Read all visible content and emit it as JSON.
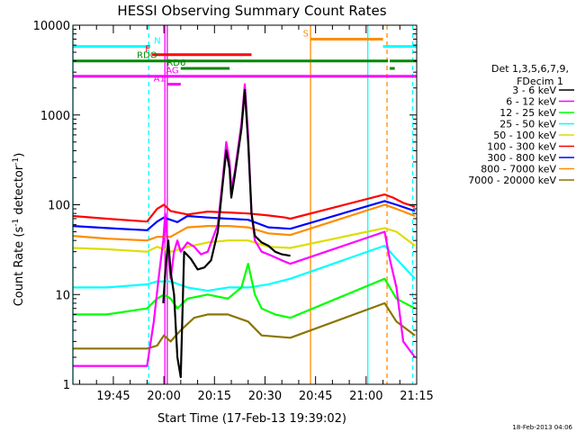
{
  "chart_data": {
    "type": "line",
    "title": "HESSI Observing Summary Count Rates",
    "xlabel": "Start Time (17-Feb-13 19:39:02)",
    "ylabel_main": "Count Rate (s",
    "ylabel_sup1": "-1",
    "ylabel_mid": " detector",
    "ylabel_sup2": "-1",
    "ylabel_end": ")",
    "timestamp": "18-Feb-2013 04:06",
    "y_scale": "log",
    "ylim": [
      1,
      10000
    ],
    "xlim_minutes": [
      -6.0,
      96.0
    ],
    "x_ticks": [
      {
        "m": 6,
        "label": "19:45"
      },
      {
        "m": 21,
        "label": "20:00"
      },
      {
        "m": 36,
        "label": "20:15"
      },
      {
        "m": 51,
        "label": "20:30"
      },
      {
        "m": 66,
        "label": "20:45"
      },
      {
        "m": 81,
        "label": "21:00"
      },
      {
        "m": 96,
        "label": "21:15"
      }
    ],
    "y_ticks": [
      {
        "v": 1,
        "label": "1"
      },
      {
        "v": 10,
        "label": "10"
      },
      {
        "v": 100,
        "label": "100"
      },
      {
        "v": 1000,
        "label": "1000"
      },
      {
        "v": 10000,
        "label": "10000"
      }
    ],
    "legend": {
      "header1": "Det 1,3,5,6,7,9,",
      "header2": "FDecim 1",
      "entries": [
        {
          "label": "3 - 6 keV",
          "color": "#000000"
        },
        {
          "label": "6 - 12 keV",
          "color": "#ff00ff"
        },
        {
          "label": "12 - 25 keV",
          "color": "#00ff00"
        },
        {
          "label": "25 - 50 keV",
          "color": "#00ffff"
        },
        {
          "label": "50 - 100 keV",
          "color": "#dddd00"
        },
        {
          "label": "100 - 300 keV",
          "color": "#ff0000"
        },
        {
          "label": "300 - 800 keV",
          "color": "#0000ff"
        },
        {
          "label": "800 - 7000 keV",
          "color": "#ff8c00"
        },
        {
          "label": "7000 - 20000 keV",
          "color": "#8b7500"
        }
      ]
    },
    "flag_bars": [
      {
        "label": "N",
        "color": "#00ffff",
        "value": 5800,
        "segments": [
          [
            -6,
            17
          ],
          [
            86,
            96
          ]
        ]
      },
      {
        "label": "S",
        "color": "#ff8c00",
        "value": 7000,
        "segments": [
          [
            64.5,
            86
          ]
        ]
      },
      {
        "label": "F",
        "color": "#ff0000",
        "value": 4700,
        "segments": [
          [
            17.5,
            47
          ]
        ]
      },
      {
        "label": "RDO",
        "color": "#008800",
        "value": 4000,
        "segments": [
          [
            -6,
            87.5
          ],
          [
            88,
            96
          ]
        ]
      },
      {
        "label": "RD6",
        "color": "#008800",
        "value": 3300,
        "segments": [
          [
            26,
            40.5
          ],
          [
            88,
            89.5
          ]
        ]
      },
      {
        "label": "AG",
        "color": "#ff00ff",
        "value": 2700,
        "segments": [
          [
            -6,
            96
          ]
        ]
      },
      {
        "label": "A1",
        "color": "#ff00ff",
        "value": 2200,
        "segments": [
          [
            22,
            26
          ]
        ]
      }
    ],
    "vlines": [
      {
        "m": -6,
        "color": "#00ffff",
        "dash": false
      },
      {
        "m": 16.5,
        "color": "#00ffff",
        "dash": true
      },
      {
        "m": 21.3,
        "color": "#ff00ff",
        "dash": false
      },
      {
        "m": 22.0,
        "color": "#ff00ff",
        "dash": false
      },
      {
        "m": 64.5,
        "color": "#ff8c00",
        "dash": false
      },
      {
        "m": 81.5,
        "color": "#00ffff",
        "dash": false
      },
      {
        "m": 87.2,
        "color": "#ff8c00",
        "dash": true
      },
      {
        "m": 94.8,
        "color": "#00ffff",
        "dash": true
      }
    ],
    "series": [
      {
        "band": "100 - 300 keV",
        "color": "#ff0000",
        "points": [
          [
            -6,
            75
          ],
          [
            4,
            70
          ],
          [
            16,
            65
          ],
          [
            19,
            90
          ],
          [
            21,
            100
          ],
          [
            23,
            85
          ],
          [
            28,
            78
          ],
          [
            34,
            84
          ],
          [
            40,
            82
          ],
          [
            46,
            80
          ],
          [
            52,
            76
          ],
          [
            57,
            72
          ],
          [
            58.5,
            70
          ],
          [
            86.5,
            130
          ],
          [
            89,
            120
          ],
          [
            92,
            105
          ],
          [
            95.5,
            95
          ]
        ]
      },
      {
        "band": "300 - 800 keV",
        "color": "#0000ff",
        "points": [
          [
            -6,
            58
          ],
          [
            4,
            55
          ],
          [
            16,
            52
          ],
          [
            19,
            65
          ],
          [
            21,
            72
          ],
          [
            25,
            64
          ],
          [
            28,
            75
          ],
          [
            34,
            72
          ],
          [
            40,
            70
          ],
          [
            46,
            68
          ],
          [
            52,
            56
          ],
          [
            58.5,
            54
          ],
          [
            86.5,
            110
          ],
          [
            90,
            100
          ],
          [
            95.5,
            85
          ]
        ]
      },
      {
        "band": "800 - 7000 keV",
        "color": "#ff8c00",
        "points": [
          [
            -6,
            45
          ],
          [
            4,
            42
          ],
          [
            16,
            40
          ],
          [
            19,
            44
          ],
          [
            23,
            44
          ],
          [
            28,
            56
          ],
          [
            34,
            58
          ],
          [
            40,
            58
          ],
          [
            46,
            56
          ],
          [
            52,
            48
          ],
          [
            58.5,
            46
          ],
          [
            86.5,
            100
          ],
          [
            90,
            90
          ],
          [
            95.5,
            75
          ]
        ]
      },
      {
        "band": "50 - 100 keV",
        "color": "#dddd00",
        "points": [
          [
            -6,
            33
          ],
          [
            4,
            32
          ],
          [
            16,
            30
          ],
          [
            19,
            34
          ],
          [
            23,
            30
          ],
          [
            28,
            34
          ],
          [
            34,
            38
          ],
          [
            40,
            40
          ],
          [
            46,
            40
          ],
          [
            52,
            34
          ],
          [
            58.5,
            33
          ],
          [
            86.5,
            55
          ],
          [
            90,
            50
          ],
          [
            95.5,
            35
          ]
        ]
      },
      {
        "band": "25 - 50 keV",
        "color": "#00ffff",
        "points": [
          [
            -6,
            12
          ],
          [
            4,
            12
          ],
          [
            16,
            13
          ],
          [
            19,
            14
          ],
          [
            23,
            14
          ],
          [
            28,
            12
          ],
          [
            34,
            11
          ],
          [
            40,
            12
          ],
          [
            46,
            12
          ],
          [
            52,
            13
          ],
          [
            58.5,
            15
          ],
          [
            86.5,
            35
          ],
          [
            90,
            25
          ],
          [
            95.5,
            15
          ]
        ]
      },
      {
        "band": "12 - 25 keV",
        "color": "#00ff00",
        "points": [
          [
            -6,
            6
          ],
          [
            4,
            6
          ],
          [
            16,
            7
          ],
          [
            19,
            9
          ],
          [
            21,
            10
          ],
          [
            23,
            9
          ],
          [
            25,
            7
          ],
          [
            28,
            9
          ],
          [
            34,
            10
          ],
          [
            40,
            9
          ],
          [
            44,
            12
          ],
          [
            46,
            22
          ],
          [
            48,
            10
          ],
          [
            50,
            7
          ],
          [
            54,
            6
          ],
          [
            58.5,
            5.5
          ],
          [
            86.5,
            15
          ],
          [
            90,
            9
          ],
          [
            95.5,
            7
          ]
        ]
      },
      {
        "band": "7000 - 20000 keV",
        "color": "#8b7500",
        "points": [
          [
            -6,
            2.5
          ],
          [
            4,
            2.5
          ],
          [
            16,
            2.5
          ],
          [
            19,
            2.7
          ],
          [
            21,
            3.5
          ],
          [
            23,
            3
          ],
          [
            26,
            4
          ],
          [
            30,
            5.5
          ],
          [
            34,
            6
          ],
          [
            40,
            6
          ],
          [
            46,
            5
          ],
          [
            50,
            3.5
          ],
          [
            58.5,
            3.3
          ],
          [
            86.5,
            8
          ],
          [
            90,
            5
          ],
          [
            95.5,
            3.5
          ]
        ]
      },
      {
        "band": "6 - 12 keV",
        "color": "#ff00ff",
        "points": [
          [
            -6,
            1.6
          ],
          [
            10,
            1.6
          ],
          [
            16,
            1.6
          ],
          [
            18,
            5
          ],
          [
            19.5,
            16
          ],
          [
            20.8,
            40
          ],
          [
            21.4,
            80
          ],
          [
            22.3,
            30
          ],
          [
            23,
            15
          ],
          [
            24,
            30
          ],
          [
            25,
            40
          ],
          [
            26,
            30
          ],
          [
            28,
            38
          ],
          [
            30,
            34
          ],
          [
            32,
            28
          ],
          [
            34,
            30
          ],
          [
            37,
            60
          ],
          [
            38.5,
            200
          ],
          [
            39.5,
            500
          ],
          [
            40.5,
            300
          ],
          [
            41,
            150
          ],
          [
            42,
            230
          ],
          [
            44,
            800
          ],
          [
            45,
            2200
          ],
          [
            46,
            600
          ],
          [
            47,
            80
          ],
          [
            48,
            40
          ],
          [
            50,
            30
          ],
          [
            52,
            28
          ],
          [
            54,
            26
          ],
          [
            56,
            24
          ],
          [
            58.5,
            22
          ],
          [
            86.5,
            50
          ],
          [
            88,
            25
          ],
          [
            90,
            12
          ],
          [
            92,
            3
          ],
          [
            95.5,
            2
          ]
        ]
      },
      {
        "band": "3 - 6 keV",
        "color": "#000000",
        "points": [
          [
            20.8,
            8
          ],
          [
            21.5,
            20
          ],
          [
            22.3,
            40
          ],
          [
            23,
            18
          ],
          [
            24,
            10
          ],
          [
            25,
            2
          ],
          [
            26,
            1.2
          ],
          [
            27,
            30
          ],
          [
            29,
            25
          ],
          [
            31,
            19
          ],
          [
            33,
            20
          ],
          [
            35,
            24
          ],
          [
            37,
            50
          ],
          [
            38.5,
            180
          ],
          [
            39.5,
            400
          ],
          [
            40.5,
            250
          ],
          [
            41,
            120
          ],
          [
            42,
            210
          ],
          [
            44,
            700
          ],
          [
            45,
            1900
          ],
          [
            46,
            500
          ],
          [
            47,
            80
          ],
          [
            48,
            45
          ],
          [
            50,
            38
          ],
          [
            52,
            35
          ],
          [
            54,
            30
          ],
          [
            56,
            28
          ],
          [
            58.5,
            27
          ]
        ]
      }
    ]
  }
}
